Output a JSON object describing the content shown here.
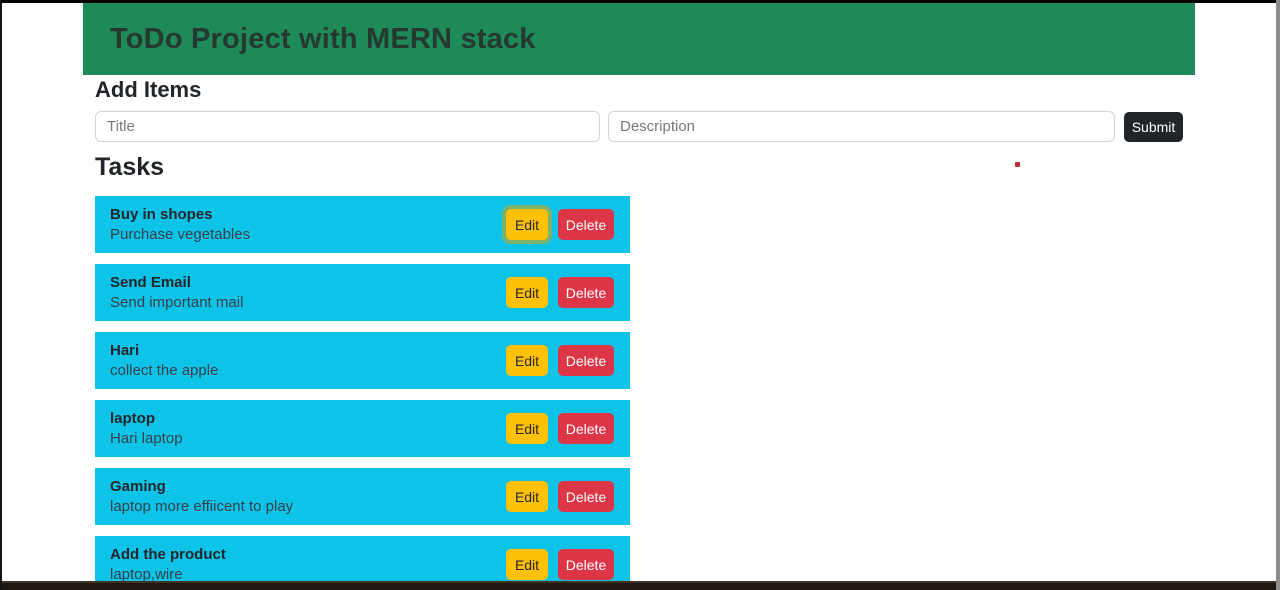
{
  "header": {
    "title": "ToDo Project with MERN stack"
  },
  "add_items": {
    "heading": "Add Items",
    "title_input": {
      "value": "",
      "placeholder": "Title"
    },
    "description_input": {
      "value": "",
      "placeholder": "Description"
    },
    "submit_button": {
      "label": "Submit"
    }
  },
  "tasks": {
    "heading": "Tasks",
    "edit_button": {
      "label": "Edit"
    },
    "delete_button": {
      "label": "Delete"
    },
    "items": [
      {
        "title": "Buy in shopes",
        "description": "Purchase vegetables",
        "edit_focused": true
      },
      {
        "title": "Send Email",
        "description": "Send important mail",
        "edit_focused": false
      },
      {
        "title": "Hari",
        "description": "collect the apple",
        "edit_focused": false
      },
      {
        "title": "laptop",
        "description": "Hari laptop",
        "edit_focused": false
      },
      {
        "title": "Gaming",
        "description": "laptop more effiicent to play",
        "edit_focused": false
      },
      {
        "title": "Add the product",
        "description": "laptop,wire",
        "edit_focused": false
      }
    ]
  },
  "colors": {
    "header_bg": "#1e8a57",
    "card_bg": "#0ec3e8",
    "edit_bg": "#ffc107",
    "delete_bg": "#dc3545",
    "submit_bg": "#212529",
    "accent_red": "#c62b36"
  }
}
